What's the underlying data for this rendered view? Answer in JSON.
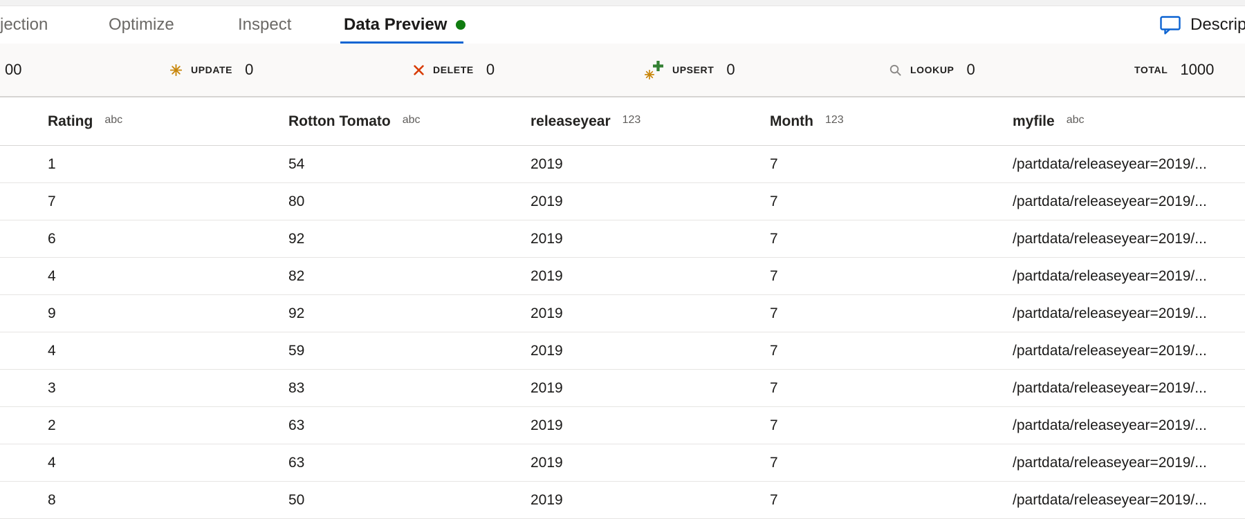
{
  "tabs": {
    "items": [
      {
        "label": "jection",
        "active": false
      },
      {
        "label": "Optimize",
        "active": false
      },
      {
        "label": "Inspect",
        "active": false
      },
      {
        "label": "Data Preview",
        "active": true
      }
    ],
    "description_label": "Descript"
  },
  "stats": {
    "partial_count": "00",
    "update": {
      "label": "UPDATE",
      "value": "0"
    },
    "delete": {
      "label": "DELETE",
      "value": "0"
    },
    "upsert": {
      "label": "UPSERT",
      "value": "0"
    },
    "lookup": {
      "label": "LOOKUP",
      "value": "0"
    },
    "total": {
      "label": "TOTAL",
      "value": "1000"
    }
  },
  "colors": {
    "accent": "#0D64D2",
    "green": "#107C10",
    "plusgreen": "#338033",
    "gold": "#C8860B",
    "red": "#D83B01",
    "gray": "#8A8886"
  },
  "table": {
    "columns": [
      {
        "name": "Rating",
        "type": "abc"
      },
      {
        "name": "Rotton Tomato",
        "type": "abc"
      },
      {
        "name": "releaseyear",
        "type": "123"
      },
      {
        "name": "Month",
        "type": "123"
      },
      {
        "name": "myfile",
        "type": "abc"
      }
    ],
    "rows": [
      [
        "1",
        "54",
        "2019",
        "7",
        "/partdata/releaseyear=2019/..."
      ],
      [
        "7",
        "80",
        "2019",
        "7",
        "/partdata/releaseyear=2019/..."
      ],
      [
        "6",
        "92",
        "2019",
        "7",
        "/partdata/releaseyear=2019/..."
      ],
      [
        "4",
        "82",
        "2019",
        "7",
        "/partdata/releaseyear=2019/..."
      ],
      [
        "9",
        "92",
        "2019",
        "7",
        "/partdata/releaseyear=2019/..."
      ],
      [
        "4",
        "59",
        "2019",
        "7",
        "/partdata/releaseyear=2019/..."
      ],
      [
        "3",
        "83",
        "2019",
        "7",
        "/partdata/releaseyear=2019/..."
      ],
      [
        "2",
        "63",
        "2019",
        "7",
        "/partdata/releaseyear=2019/..."
      ],
      [
        "4",
        "63",
        "2019",
        "7",
        "/partdata/releaseyear=2019/..."
      ],
      [
        "8",
        "50",
        "2019",
        "7",
        "/partdata/releaseyear=2019/..."
      ]
    ]
  }
}
